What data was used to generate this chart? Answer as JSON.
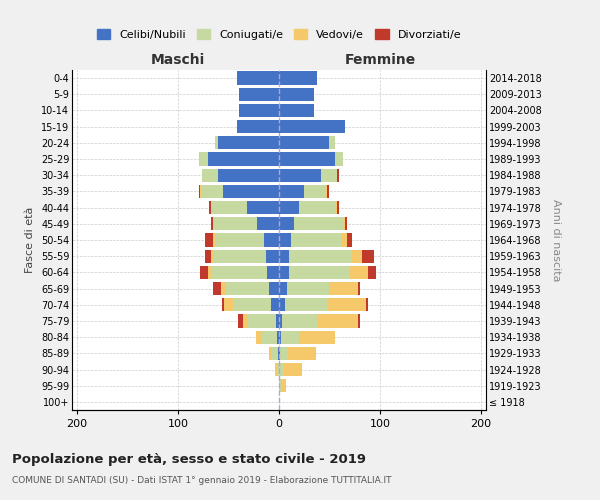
{
  "age_groups": [
    "100+",
    "95-99",
    "90-94",
    "85-89",
    "80-84",
    "75-79",
    "70-74",
    "65-69",
    "60-64",
    "55-59",
    "50-54",
    "45-49",
    "40-44",
    "35-39",
    "30-34",
    "25-29",
    "20-24",
    "15-19",
    "10-14",
    "5-9",
    "0-4"
  ],
  "birth_years": [
    "≤ 1918",
    "1919-1923",
    "1924-1928",
    "1929-1933",
    "1934-1938",
    "1939-1943",
    "1944-1948",
    "1949-1953",
    "1954-1958",
    "1959-1963",
    "1964-1968",
    "1969-1973",
    "1974-1978",
    "1979-1983",
    "1984-1988",
    "1989-1993",
    "1994-1998",
    "1999-2003",
    "2004-2008",
    "2009-2013",
    "2014-2018"
  ],
  "maschi": {
    "celibi": [
      0,
      0,
      0,
      1,
      2,
      3,
      8,
      10,
      12,
      13,
      15,
      22,
      32,
      55,
      60,
      70,
      60,
      42,
      40,
      40,
      42
    ],
    "coniugati": [
      0,
      0,
      2,
      6,
      16,
      28,
      38,
      42,
      55,
      52,
      48,
      42,
      34,
      22,
      16,
      8,
      3,
      0,
      0,
      0,
      0
    ],
    "vedovi": [
      0,
      0,
      2,
      3,
      5,
      5,
      8,
      5,
      3,
      2,
      2,
      1,
      1,
      1,
      0,
      1,
      0,
      0,
      0,
      0,
      0
    ],
    "divorziati": [
      0,
      0,
      0,
      0,
      0,
      5,
      2,
      8,
      8,
      6,
      8,
      2,
      2,
      1,
      0,
      0,
      0,
      0,
      0,
      0,
      0
    ]
  },
  "femmine": {
    "nubili": [
      0,
      0,
      0,
      1,
      2,
      3,
      6,
      8,
      10,
      10,
      12,
      15,
      20,
      25,
      42,
      55,
      50,
      65,
      35,
      35,
      38
    ],
    "coniugate": [
      0,
      2,
      5,
      8,
      18,
      35,
      42,
      42,
      60,
      62,
      50,
      48,
      35,
      22,
      15,
      8,
      5,
      0,
      0,
      0,
      0
    ],
    "vedove": [
      0,
      5,
      18,
      28,
      35,
      40,
      38,
      28,
      18,
      10,
      5,
      2,
      2,
      1,
      0,
      0,
      0,
      0,
      0,
      0,
      0
    ],
    "divorziate": [
      0,
      0,
      0,
      0,
      0,
      2,
      2,
      2,
      8,
      12,
      5,
      2,
      2,
      2,
      2,
      0,
      0,
      0,
      0,
      0,
      0
    ]
  },
  "colors": {
    "celibi_nubili": "#4472C4",
    "coniugati": "#c5d9a0",
    "vedovi": "#f5c96a",
    "divorziati": "#c0392b"
  },
  "xlim": [
    -205,
    205
  ],
  "xticks": [
    -200,
    -100,
    0,
    100,
    200
  ],
  "xticklabels": [
    "200",
    "100",
    "0",
    "100",
    "200"
  ],
  "title": "Popolazione per età, sesso e stato civile - 2019",
  "subtitle": "COMUNE DI SANTADI (SU) - Dati ISTAT 1° gennaio 2019 - Elaborazione TUTTITALIA.IT",
  "ylabel": "Fasce di età",
  "ylabel_right": "Anni di nascita",
  "legend_labels": [
    "Celibi/Nubili",
    "Coniugati/e",
    "Vedovi/e",
    "Divorziati/e"
  ],
  "maschi_label": "Maschi",
  "femmine_label": "Femmine",
  "bg_color": "#f0f0f0",
  "plot_bg_color": "#ffffff",
  "grid_color": "#cccccc"
}
